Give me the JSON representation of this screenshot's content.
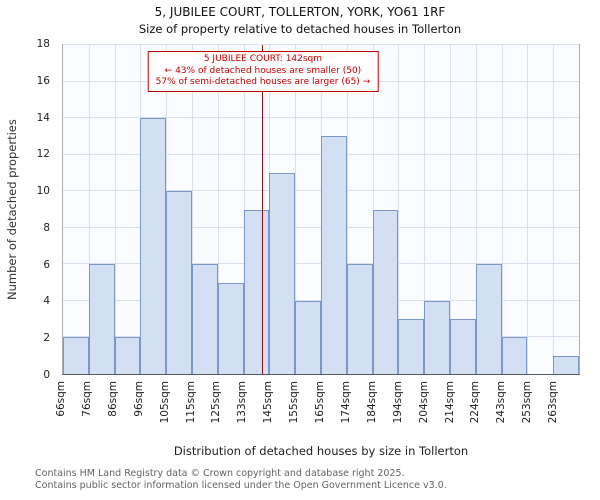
{
  "title": "5, JUBILEE COURT, TOLLERTON, YORK, YO61 1RF",
  "subtitle": "Size of property relative to detached houses in Tollerton",
  "chart_data": {
    "type": "bar",
    "categories": [
      "66sqm",
      "76sqm",
      "86sqm",
      "96sqm",
      "105sqm",
      "115sqm",
      "125sqm",
      "133sqm",
      "145sqm",
      "155sqm",
      "165sqm",
      "174sqm",
      "184sqm",
      "194sqm",
      "204sqm",
      "214sqm",
      "224sqm",
      "243sqm",
      "253sqm",
      "263sqm"
    ],
    "values": [
      2,
      6,
      2,
      14,
      10,
      6,
      5,
      9,
      11,
      4,
      13,
      6,
      9,
      3,
      4,
      3,
      6,
      2,
      0,
      1
    ],
    "title": "Size of property relative to detached houses in Tollerton",
    "xlabel": "Distribution of detached houses by size in Tollerton",
    "ylabel": "Number of detached properties",
    "ylim": [
      0,
      18
    ],
    "yticks": [
      0,
      2,
      4,
      6,
      8,
      10,
      12,
      14,
      16,
      18
    ],
    "grid": "on",
    "marker": {
      "label": "142sqm",
      "position_fraction": 0.3875
    },
    "annotation": [
      "5 JUBILEE COURT: 142sqm",
      "← 43% of detached houses are smaller (50)",
      "57% of semi-detached houses are larger (65) →"
    ]
  },
  "footer": {
    "line1": "Contains HM Land Registry data © Crown copyright and database right 2025.",
    "line2": "Contains public sector information licensed under the Open Government Licence v3.0."
  },
  "colors": {
    "bar_fill": "#d3dff2",
    "bar_border": "#7b97c6",
    "gridline": "#d9e1ef",
    "marker_line": "#8b1212",
    "annotation_red": "#c00000"
  }
}
